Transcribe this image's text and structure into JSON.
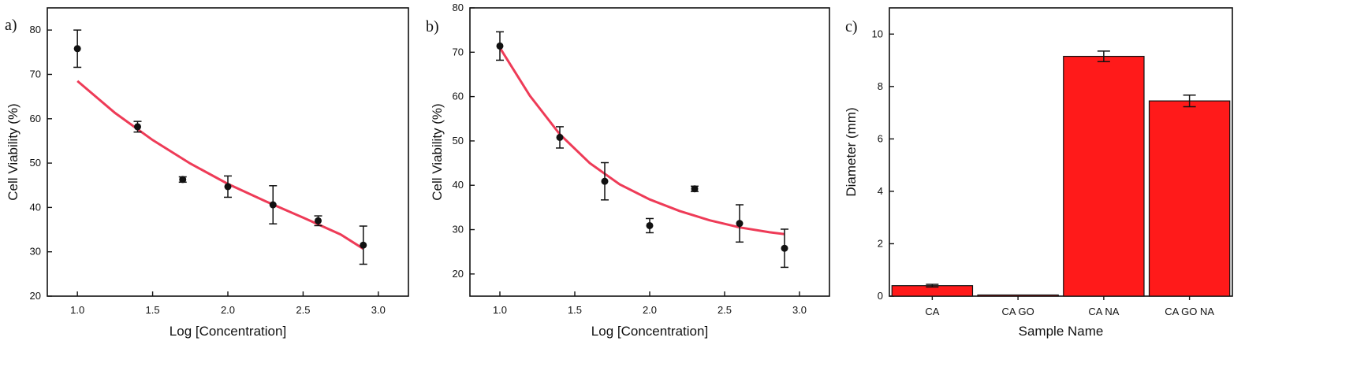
{
  "chart_data": [
    {
      "type": "scatter",
      "panel_label": "a)",
      "xlabel": "Log [Concentration]",
      "ylabel": "Cell Viability (%)",
      "xlim": [
        0.8,
        3.2
      ],
      "ylim": [
        20,
        85
      ],
      "xticks": [
        1.0,
        1.5,
        2.0,
        2.5,
        3.0
      ],
      "xtick_labels": [
        "1.0",
        "1.5",
        "2.0",
        "2.5",
        "3.0"
      ],
      "yticks": [
        20,
        30,
        40,
        50,
        60,
        70,
        80
      ],
      "ytick_labels": [
        "20",
        "30",
        "40",
        "50",
        "60",
        "70",
        "80"
      ],
      "points": [
        {
          "x": 1.0,
          "y": 75.8,
          "err": 4.2
        },
        {
          "x": 1.4,
          "y": 58.2,
          "err": 1.2
        },
        {
          "x": 1.7,
          "y": 46.3,
          "err": 0.6
        },
        {
          "x": 2.0,
          "y": 44.7,
          "err": 2.4
        },
        {
          "x": 2.3,
          "y": 40.6,
          "err": 4.3
        },
        {
          "x": 2.6,
          "y": 37.0,
          "err": 1.1
        },
        {
          "x": 2.9,
          "y": 31.5,
          "err": 4.3
        }
      ],
      "fit": {
        "type": "exponential",
        "x": [
          1.0,
          2.9
        ],
        "points": [
          [
            1.0,
            68.5
          ],
          [
            1.25,
            61.3
          ],
          [
            1.5,
            55.2
          ],
          [
            1.75,
            49.9
          ],
          [
            2.0,
            45.3
          ],
          [
            2.25,
            41.4
          ],
          [
            2.5,
            37.7
          ],
          [
            2.75,
            33.9
          ],
          [
            2.9,
            30.7
          ]
        ],
        "color": "#ee3b57"
      },
      "grid": false
    },
    {
      "type": "scatter",
      "panel_label": "b)",
      "xlabel": "Log [Concentration]",
      "ylabel": "Cell Viability (%)",
      "xlim": [
        0.8,
        3.2
      ],
      "ylim": [
        15,
        80
      ],
      "xticks": [
        1.0,
        1.5,
        2.0,
        2.5,
        3.0
      ],
      "xtick_labels": [
        "1.0",
        "1.5",
        "2.0",
        "2.5",
        "3.0"
      ],
      "yticks": [
        20,
        30,
        40,
        50,
        60,
        70,
        80
      ],
      "ytick_labels": [
        "20",
        "30",
        "40",
        "50",
        "60",
        "70",
        "80"
      ],
      "points": [
        {
          "x": 1.0,
          "y": 71.4,
          "err": 3.2
        },
        {
          "x": 1.4,
          "y": 50.8,
          "err": 2.4
        },
        {
          "x": 1.7,
          "y": 40.9,
          "err": 4.2
        },
        {
          "x": 2.0,
          "y": 30.9,
          "err": 1.6
        },
        {
          "x": 2.3,
          "y": 39.2,
          "err": 0.6
        },
        {
          "x": 2.6,
          "y": 31.4,
          "err": 4.2
        },
        {
          "x": 2.9,
          "y": 25.8,
          "err": 4.3
        }
      ],
      "fit": {
        "type": "exponential",
        "x": [
          1.0,
          2.9
        ],
        "points": [
          [
            1.0,
            71.0
          ],
          [
            1.2,
            60.2
          ],
          [
            1.4,
            51.5
          ],
          [
            1.6,
            45.0
          ],
          [
            1.8,
            40.2
          ],
          [
            2.0,
            36.8
          ],
          [
            2.2,
            34.2
          ],
          [
            2.4,
            32.1
          ],
          [
            2.6,
            30.5
          ],
          [
            2.8,
            29.4
          ],
          [
            2.9,
            29.0
          ]
        ],
        "color": "#ee3b57"
      },
      "grid": false
    },
    {
      "type": "bar",
      "panel_label": "c)",
      "xlabel": "Sample Name",
      "ylabel": "Diameter (mm)",
      "categories": [
        "CA",
        "CA GO",
        "CA NA",
        "CA GO NA"
      ],
      "values": [
        0.4,
        0.02,
        9.15,
        7.45
      ],
      "errors": [
        0.05,
        0.0,
        0.2,
        0.22
      ],
      "ylim": [
        0,
        11
      ],
      "yticks": [
        0,
        2,
        4,
        6,
        8,
        10
      ],
      "ytick_labels": [
        "0",
        "2",
        "4",
        "6",
        "8",
        "10"
      ],
      "bar_color": "#ff1a1a",
      "grid": false
    }
  ]
}
